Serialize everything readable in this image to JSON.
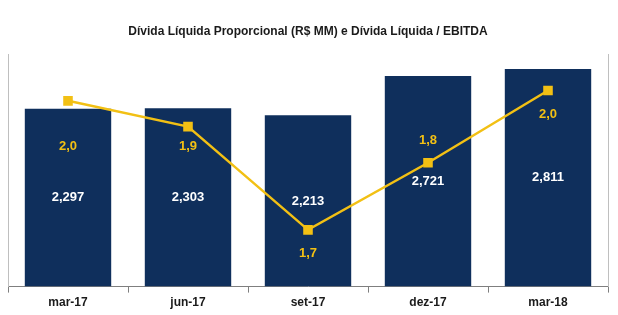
{
  "chart_data": {
    "type": "bar",
    "title": "Dívida Líquida Proporcional (R$ MM) e Dívida Líquida / EBITDA",
    "categories": [
      "mar-17",
      "jun-17",
      "set-17",
      "dez-17",
      "mar-18"
    ],
    "series": [
      {
        "type": "bar",
        "color": "#0f2f5c",
        "values": [
          2297,
          2303,
          2213,
          2721,
          2811
        ],
        "value_labels": [
          "2,297",
          "2,303",
          "2,213",
          "2,721",
          "2,811"
        ]
      },
      {
        "type": "line",
        "color": "#f2c014",
        "marker": "square",
        "axis": "y2",
        "values": [
          1.96,
          1.91,
          1.71,
          1.84,
          1.98
        ],
        "value_labels": [
          "2,0",
          "1,9",
          "1,7",
          "1,8",
          "2,0"
        ]
      }
    ],
    "ylim": [
      0,
      3000
    ],
    "y2lim": [
      1.6,
      2.05
    ],
    "grid": false,
    "data_labels": true,
    "tick_labels": "x"
  }
}
